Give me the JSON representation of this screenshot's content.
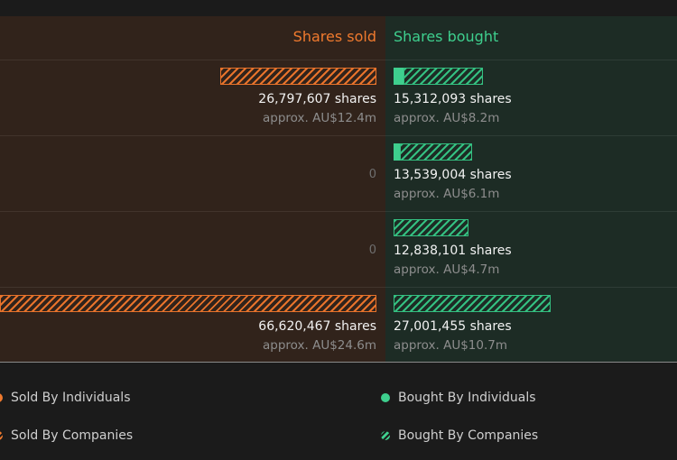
{
  "header": {
    "sold_label": "Shares sold",
    "bought_label": "Shares bought"
  },
  "colors": {
    "sold": "#f07a2e",
    "bought": "#3ecf8e",
    "sold_bg": "#31231b",
    "bought_bg": "#1d2c25"
  },
  "rows": [
    {
      "sold_shares": "26,797,607 shares",
      "sold_approx": "approx. AU$12.4m",
      "bought_shares": "15,312,093 shares",
      "bought_approx": "approx. AU$8.2m"
    },
    {
      "sold_zero": "0",
      "bought_shares": "13,539,004 shares",
      "bought_approx": "approx. AU$6.1m"
    },
    {
      "sold_zero": "0",
      "bought_shares": "12,838,101 shares",
      "bought_approx": "approx. AU$4.7m"
    },
    {
      "sold_shares": "66,620,467 shares",
      "sold_approx": "approx. AU$24.6m",
      "bought_shares": "27,001,455 shares",
      "bought_approx": "approx. AU$10.7m"
    }
  ],
  "legend": {
    "sold_individuals": "Sold By Individuals",
    "sold_companies": "Sold By Companies",
    "bought_individuals": "Bought By Individuals",
    "bought_companies": "Bought By Companies"
  },
  "chart_data": {
    "type": "bar",
    "series": [
      {
        "name": "Sold By Individuals",
        "values": [
          0,
          0,
          0,
          0
        ]
      },
      {
        "name": "Sold By Companies",
        "values": [
          26797607,
          0,
          0,
          66620467
        ]
      },
      {
        "name": "Bought By Individuals",
        "values": [
          1400000,
          900000,
          0,
          0
        ]
      },
      {
        "name": "Bought By Companies",
        "values": [
          13912093,
          12639004,
          12838101,
          27001455
        ]
      }
    ]
  }
}
